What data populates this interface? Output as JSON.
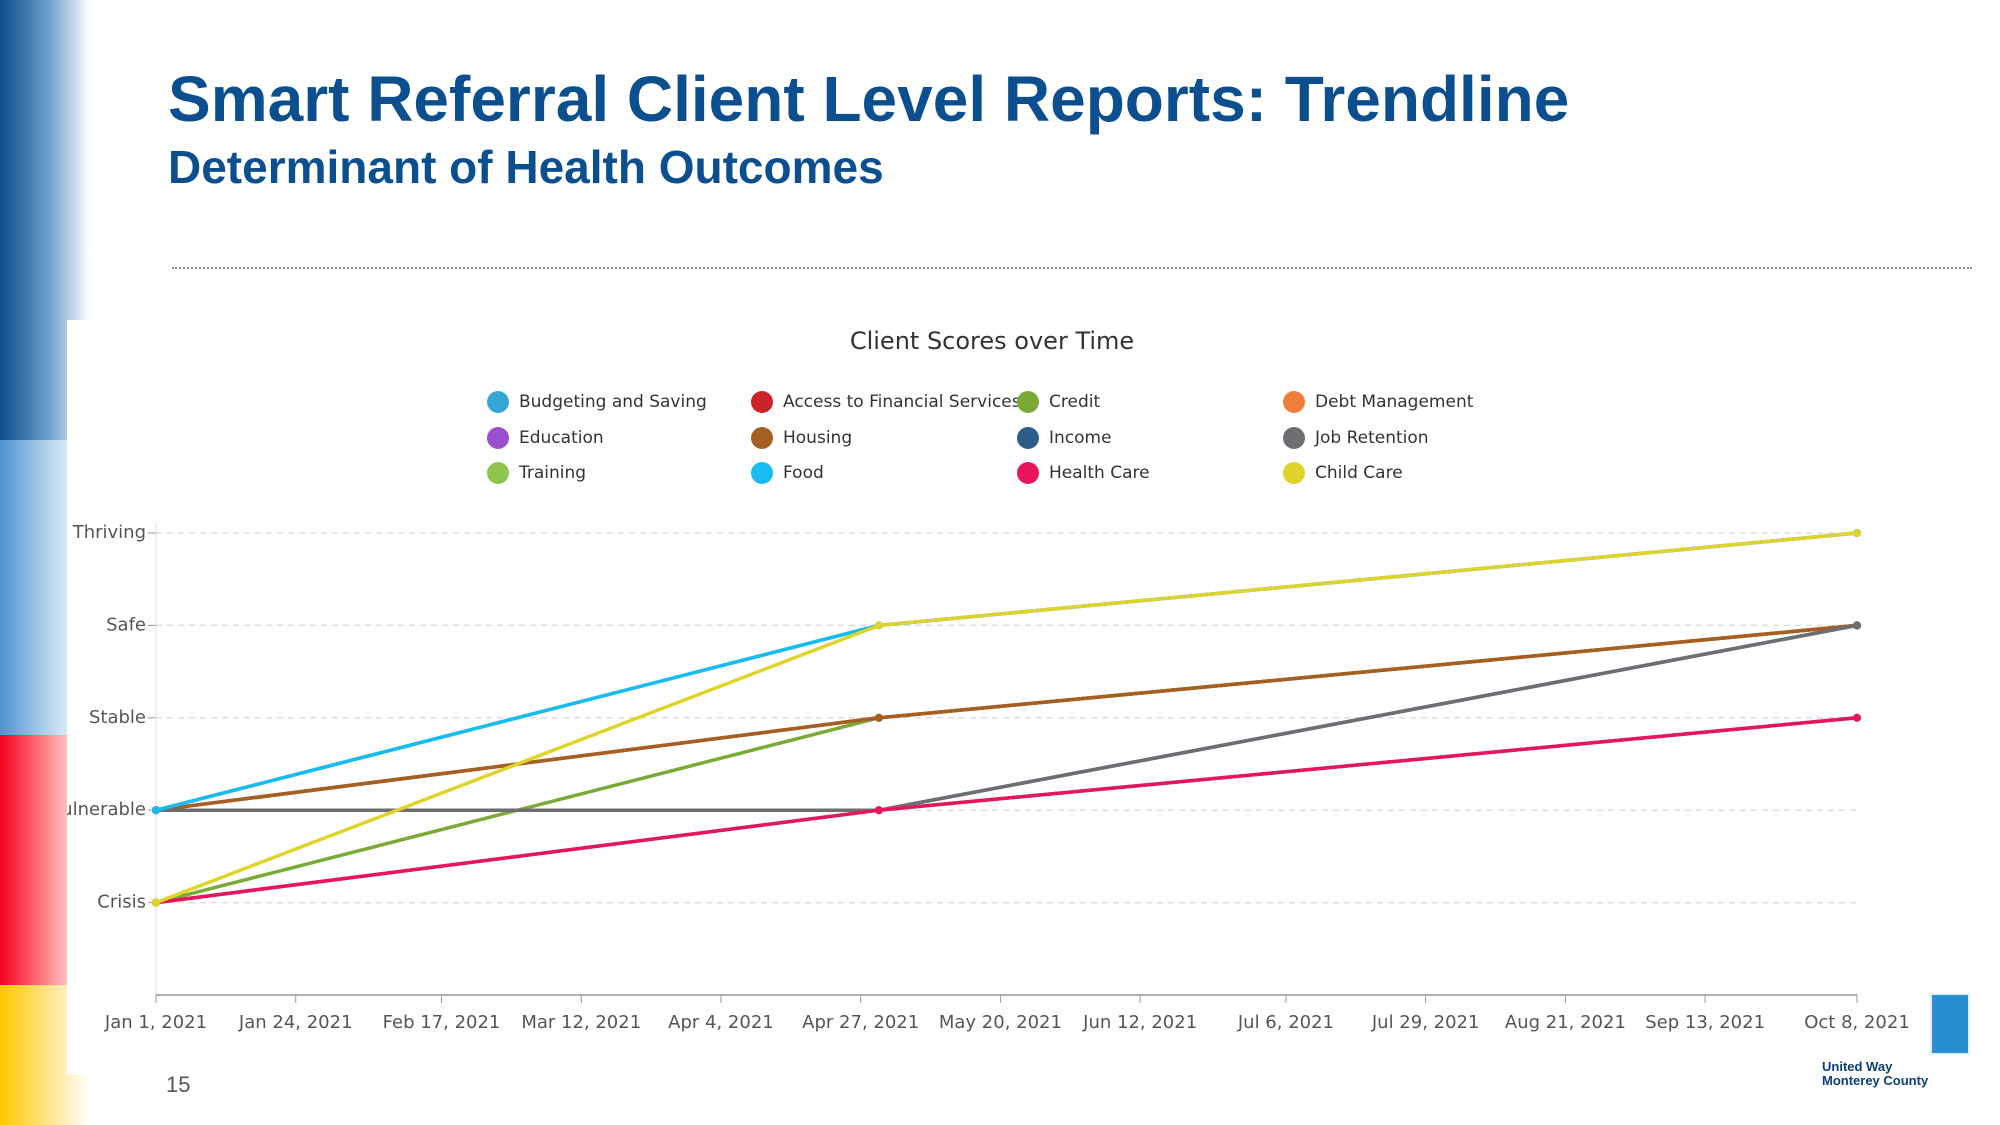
{
  "slide": {
    "title": "Smart Referral Client Level Reports: Trendline",
    "subtitle": "Determinant of Health Outcomes",
    "page_number": "15",
    "logo_line1": "United Way",
    "logo_line2": "Monterey County"
  },
  "chart_data": {
    "type": "line",
    "title": "Client Scores over Time",
    "x": [
      "2021-01-01",
      "2021-04-30",
      "2021-10-08"
    ],
    "xlim": [
      "2021-01-01",
      "2021-10-08"
    ],
    "xticks": [
      {
        "value": "2021-01-01",
        "label": "Jan 1, 2021"
      },
      {
        "value": "2021-01-24",
        "label": "Jan 24, 2021"
      },
      {
        "value": "2021-02-17",
        "label": "Feb 17, 2021"
      },
      {
        "value": "2021-03-12",
        "label": "Mar 12, 2021"
      },
      {
        "value": "2021-04-04",
        "label": "Apr 4, 2021"
      },
      {
        "value": "2021-04-27",
        "label": "Apr 27, 2021"
      },
      {
        "value": "2021-05-20",
        "label": "May 20, 2021"
      },
      {
        "value": "2021-06-12",
        "label": "Jun 12, 2021"
      },
      {
        "value": "2021-07-06",
        "label": "Jul 6, 2021"
      },
      {
        "value": "2021-07-29",
        "label": "Jul 29, 2021"
      },
      {
        "value": "2021-08-21",
        "label": "Aug 21, 2021"
      },
      {
        "value": "2021-09-13",
        "label": "Sep 13, 2021"
      },
      {
        "value": "2021-10-08",
        "label": "Oct 8, 2021"
      }
    ],
    "ylim": [
      0,
      5
    ],
    "yticks": [
      {
        "value": 1,
        "label": "Crisis"
      },
      {
        "value": 2,
        "label": "Vulnerable"
      },
      {
        "value": 3,
        "label": "Stable"
      },
      {
        "value": 4,
        "label": "Safe"
      },
      {
        "value": 5,
        "label": "Thriving"
      }
    ],
    "grid": true,
    "series": [
      {
        "name": "Budgeting and Saving",
        "color": "#36a6d6",
        "values": [
          2,
          4,
          5
        ]
      },
      {
        "name": "Access to Financial Services",
        "color": "#cc2229",
        "values": [
          2,
          3,
          4
        ]
      },
      {
        "name": "Credit",
        "color": "#7aaa35",
        "values": [
          1,
          3,
          4
        ]
      },
      {
        "name": "Debt Management",
        "color": "#ee7f3b",
        "values": [
          2,
          3,
          4
        ]
      },
      {
        "name": "Education",
        "color": "#9b4fcf",
        "values": [
          1,
          2,
          3
        ]
      },
      {
        "name": "Housing",
        "color": "#a45f22",
        "values": [
          2,
          3,
          4
        ]
      },
      {
        "name": "Income",
        "color": "#2b5c8a",
        "values": [
          2,
          2,
          4
        ]
      },
      {
        "name": "Job Retention",
        "color": "#6d6e71",
        "values": [
          2,
          2,
          4
        ]
      },
      {
        "name": "Training",
        "color": "#8ec450",
        "values": [
          1,
          2,
          3
        ]
      },
      {
        "name": "Food",
        "color": "#17bdf0",
        "values": [
          2,
          4,
          5
        ]
      },
      {
        "name": "Health Care",
        "color": "#e8145e",
        "values": [
          1,
          2,
          3
        ]
      },
      {
        "name": "Child Care",
        "color": "#e0d32a",
        "values": [
          1,
          4,
          5
        ]
      }
    ]
  }
}
